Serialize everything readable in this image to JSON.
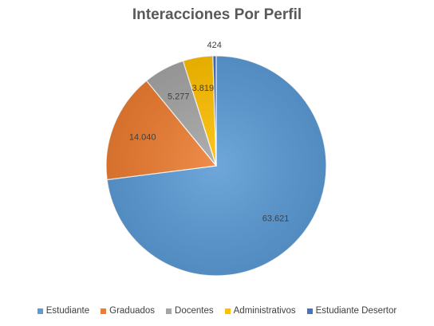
{
  "chart_data": {
    "type": "pie",
    "title": "Interacciones Por Perfil",
    "categories": [
      "Estudiante",
      "Graduados",
      "Docentes",
      "Administrativos",
      "Estudiante Desertor"
    ],
    "values": [
      63621,
      14040,
      5277,
      3819,
      424
    ],
    "value_labels": [
      "63.621",
      "14.040",
      "5.277",
      "3.819",
      "424"
    ],
    "colors": [
      "#5B9BD5",
      "#ED7D31",
      "#A5A5A5",
      "#FFC000",
      "#4472C4"
    ],
    "legend_position": "bottom"
  }
}
